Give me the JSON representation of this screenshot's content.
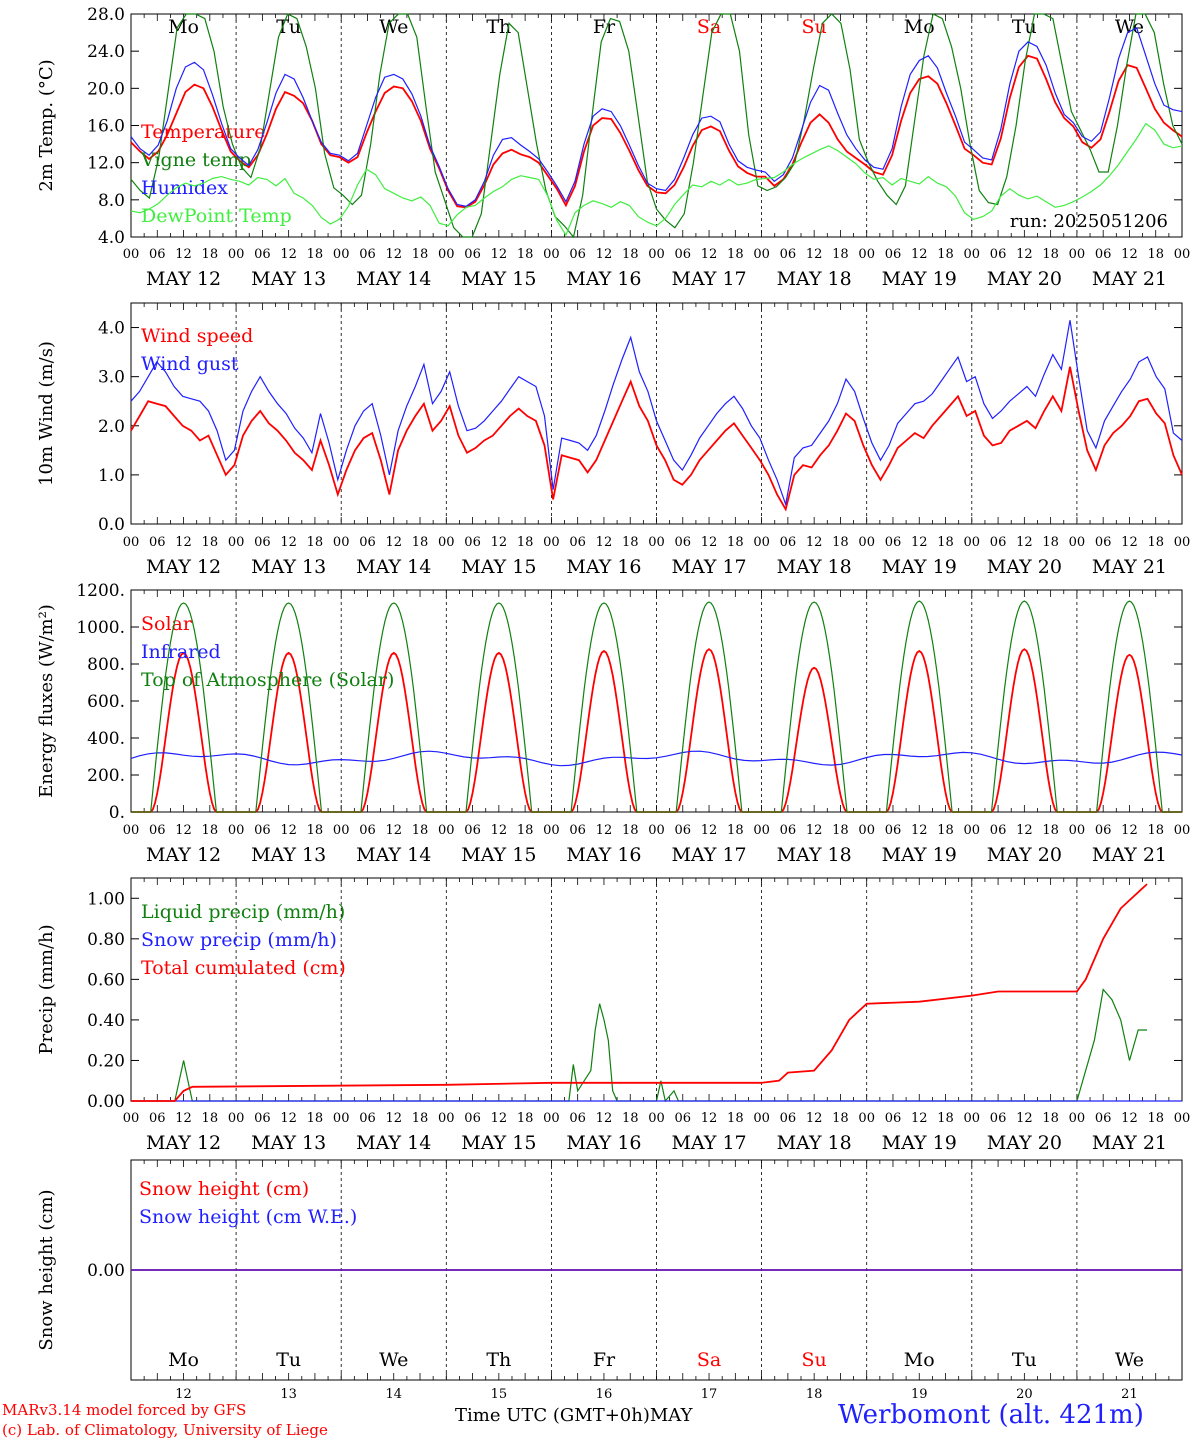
{
  "chart_data": [
    {
      "type": "line",
      "panel": "temperature",
      "ylabel": "2m Temp. (°C)",
      "ylim": [
        4,
        28
      ],
      "yticks": [
        "4.0",
        "8.0",
        "12.0",
        "16.0",
        "20.0",
        "24.0",
        "28.0"
      ],
      "annotation": "run: 2025051206",
      "series": [
        {
          "name": "Temperature",
          "color": "#ff0000",
          "values": [
            14.2,
            13.2,
            12.4,
            13.2,
            15,
            17.3,
            19.6,
            20.4,
            20,
            18,
            15.5,
            13.2,
            12.2,
            11.5,
            12.8,
            15.1,
            17.8,
            19.6,
            19.2,
            18.4,
            16.5,
            14,
            12.8,
            12.6,
            12,
            12.6,
            15.2,
            17.5,
            19.5,
            20.2,
            20,
            18.6,
            16.5,
            13.5,
            11.4,
            9,
            7.3,
            7.2,
            7.8,
            9.6,
            11.8,
            13,
            13.4,
            12.9,
            12.6,
            12,
            10.6,
            9.2,
            7.4,
            9.5,
            13.2,
            16,
            16.8,
            16.7,
            15.2,
            13.3,
            11.2,
            9.5,
            8.8,
            8.7,
            9.6,
            11.5,
            13.8,
            15.5,
            15.9,
            15.4,
            13.3,
            11.6,
            10.9,
            10.5,
            10.5,
            9.5,
            10.2,
            11.8,
            14.2,
            16.3,
            17.2,
            16.3,
            14.5,
            13.2,
            12.5,
            11.8,
            11,
            10.7,
            12.8,
            16.5,
            19.5,
            21,
            21.3,
            20.5,
            18.4,
            16,
            13.5,
            12.8,
            12,
            11.8,
            14.6,
            19,
            22.3,
            23.5,
            23.2,
            21,
            18.5,
            16.8,
            15.9,
            14.2,
            13.6,
            14.5,
            17.5,
            20.8,
            22.5,
            22.2,
            20,
            17.8,
            16.3,
            15.5,
            14.8
          ]
        },
        {
          "name": "Vigne temp",
          "color": "#108010",
          "values": [
            10.2,
            9,
            8.2,
            12.5,
            19.5,
            26.5,
            28,
            28,
            27.5,
            24,
            18,
            14,
            11.5,
            10.4,
            13.5,
            19.5,
            25.5,
            28,
            27.5,
            24.5,
            20,
            13,
            9.3,
            8.5,
            7.5,
            8.5,
            14,
            21.5,
            27,
            28,
            28,
            25.5,
            18,
            11,
            8,
            5,
            3.5,
            3,
            6.5,
            14,
            21.5,
            27,
            26,
            20,
            14,
            9,
            6.2,
            5.2,
            4,
            8.5,
            17,
            25,
            27.5,
            27.2,
            24,
            17,
            10,
            7,
            5.8,
            5,
            6.5,
            12,
            19,
            26,
            28,
            28,
            24,
            15,
            9.5,
            9,
            9.4,
            10.4,
            12,
            16.5,
            22,
            27,
            28,
            27,
            22,
            14.5,
            12,
            10,
            8.5,
            7.5,
            9.5,
            16.5,
            23.5,
            28,
            27.5,
            24.5,
            20,
            14,
            9,
            7.7,
            7.5,
            10.5,
            16,
            23,
            28,
            28,
            27.5,
            22.5,
            17.5,
            15.5,
            13.5,
            11,
            11,
            16,
            22.5,
            28,
            28,
            26,
            20.5,
            16,
            14
          ]
        },
        {
          "name": "Humidex",
          "color": "#2020ff",
          "values": [
            14.8,
            13.5,
            12.8,
            13.9,
            16.5,
            20,
            22.3,
            22.8,
            22,
            19.3,
            16.2,
            13.5,
            12.5,
            11.7,
            13.4,
            16.3,
            19.5,
            21.5,
            21,
            19,
            16.5,
            14.2,
            13,
            12.8,
            12.2,
            13,
            16,
            19,
            21.2,
            21.5,
            21,
            19.4,
            17,
            13.8,
            11.6,
            9.2,
            7.5,
            7.3,
            8,
            10,
            12.8,
            14.5,
            14.7,
            13.9,
            13.2,
            12.4,
            11,
            9.5,
            7.8,
            10,
            14,
            17,
            17.8,
            17.5,
            16,
            13.9,
            11.7,
            9.8,
            9.2,
            9,
            10.2,
            12.5,
            15,
            16.8,
            17,
            16.4,
            14,
            12.2,
            11.5,
            11.2,
            11,
            10,
            10.7,
            12.5,
            15.5,
            18.5,
            20.3,
            19.8,
            17.3,
            15,
            13.5,
            12.3,
            11.5,
            11.3,
            13.5,
            18,
            21.5,
            23,
            23.5,
            22.2,
            19.5,
            17,
            14.2,
            13.4,
            12.5,
            12.3,
            15.6,
            20.5,
            24,
            25,
            24.5,
            22.5,
            19.5,
            17.2,
            16.3,
            14.8,
            14.3,
            15.3,
            19,
            23.2,
            26,
            26.5,
            23.5,
            20.5,
            18.2,
            17.7,
            17.5
          ]
        },
        {
          "name": "DewPoint Temp",
          "color": "#40ee40",
          "values": [
            6.8,
            6.6,
            7,
            7.6,
            8.5,
            9.3,
            9.8,
            9.5,
            9.8,
            10.3,
            10.5,
            10.2,
            10,
            9.6,
            10.4,
            10.2,
            9.5,
            10.3,
            8.7,
            8.2,
            7.4,
            6.1,
            5.4,
            5.9,
            7.3,
            9.6,
            11.3,
            10.7,
            9.2,
            8.7,
            8.2,
            7.9,
            8.3,
            7.4,
            5.5,
            5.2,
            6.4,
            7.2,
            7.4,
            8.2,
            8.9,
            9.4,
            10.2,
            10.6,
            10.4,
            10.2,
            8.4,
            5.8,
            4.2,
            6.6,
            7.4,
            7.9,
            7.6,
            7.2,
            7.8,
            7.4,
            6.2,
            5.6,
            5.2,
            6,
            7.5,
            8.6,
            9.6,
            9.4,
            10,
            9.6,
            10.2,
            9.6,
            9.8,
            10.2,
            10.3,
            10.4,
            11,
            11.8,
            12.4,
            12.9,
            13.4,
            13.8,
            13.3,
            12.6,
            11.9,
            10.9,
            10.2,
            10.4,
            9.6,
            10.3,
            10,
            9.7,
            10.5,
            9.8,
            9.4,
            8.4,
            6.6,
            5.9,
            6.2,
            6.8,
            8.4,
            9.2,
            8.5,
            8.1,
            8.4,
            7.8,
            7.2,
            7.4,
            7.8,
            8.3,
            8.9,
            9.6,
            10.6,
            11.8,
            13.2,
            14.6,
            16.2,
            15.5,
            14,
            13.6,
            13.8
          ]
        }
      ]
    },
    {
      "type": "line",
      "panel": "wind",
      "ylabel": "10m Wind (m/s)",
      "ylim": [
        0,
        4.5
      ],
      "yticks": [
        "0.0",
        "1.0",
        "2.0",
        "3.0",
        "4.0"
      ],
      "series": [
        {
          "name": "Wind speed",
          "color": "#ff0000",
          "values": [
            1.9,
            2.2,
            2.5,
            2.45,
            2.4,
            2.2,
            2,
            1.9,
            1.7,
            1.8,
            1.4,
            1,
            1.2,
            1.8,
            2.1,
            2.3,
            2.05,
            1.9,
            1.7,
            1.45,
            1.3,
            1.1,
            1.7,
            1.2,
            0.6,
            1.1,
            1.5,
            1.75,
            1.85,
            1.3,
            0.6,
            1.5,
            1.9,
            2.2,
            2.45,
            1.9,
            2.1,
            2.4,
            1.8,
            1.45,
            1.55,
            1.7,
            1.8,
            2,
            2.2,
            2.35,
            2.2,
            2.1,
            1.6,
            0.5,
            1.4,
            1.35,
            1.3,
            1.05,
            1.3,
            1.7,
            2.1,
            2.5,
            2.9,
            2.4,
            2.1,
            1.6,
            1.3,
            0.9,
            0.8,
            1,
            1.3,
            1.5,
            1.7,
            1.9,
            2.05,
            1.8,
            1.55,
            1.3,
            1,
            0.6,
            0.3,
            1,
            1.2,
            1.15,
            1.4,
            1.6,
            1.9,
            2.25,
            2.1,
            1.6,
            1.2,
            0.9,
            1.2,
            1.55,
            1.7,
            1.85,
            1.75,
            2,
            2.2,
            2.4,
            2.6,
            2.2,
            2.3,
            1.8,
            1.6,
            1.65,
            1.9,
            2,
            2.1,
            1.95,
            2.3,
            2.6,
            2.3,
            3.2,
            2.3,
            1.5,
            1.1,
            1.6,
            1.85,
            2,
            2.2,
            2.5,
            2.55,
            2.25,
            2.05,
            1.4,
            1
          ]
        },
        {
          "name": "Wind gust",
          "color": "#2020ff",
          "values": [
            2.5,
            2.7,
            3,
            3.3,
            3.1,
            2.8,
            2.6,
            2.55,
            2.5,
            2.3,
            1.9,
            1.3,
            1.5,
            2.3,
            2.7,
            3,
            2.7,
            2.45,
            2.25,
            1.95,
            1.75,
            1.45,
            2.25,
            1.65,
            0.9,
            1.5,
            2,
            2.3,
            2.45,
            1.8,
            1,
            1.9,
            2.4,
            2.8,
            3.25,
            2.45,
            2.7,
            3.1,
            2.4,
            1.9,
            1.95,
            2.1,
            2.3,
            2.5,
            2.75,
            3,
            2.9,
            2.8,
            2.2,
            0.7,
            1.75,
            1.7,
            1.65,
            1.5,
            1.8,
            2.3,
            2.85,
            3.35,
            3.8,
            3.1,
            2.7,
            2.1,
            1.7,
            1.3,
            1.1,
            1.4,
            1.75,
            2,
            2.25,
            2.45,
            2.6,
            2.35,
            2,
            1.75,
            1.3,
            0.9,
            0.4,
            1.35,
            1.55,
            1.6,
            1.85,
            2.1,
            2.45,
            2.95,
            2.7,
            2.15,
            1.65,
            1.3,
            1.6,
            2.05,
            2.25,
            2.45,
            2.5,
            2.65,
            2.9,
            3.15,
            3.4,
            2.9,
            3,
            2.45,
            2.15,
            2.3,
            2.5,
            2.65,
            2.8,
            2.6,
            3.05,
            3.45,
            3.15,
            4.15,
            3,
            1.9,
            1.55,
            2.1,
            2.4,
            2.7,
            2.95,
            3.3,
            3.4,
            3,
            2.75,
            1.85,
            1.7
          ]
        }
      ]
    },
    {
      "type": "line",
      "panel": "energy",
      "ylabel": "Energy fluxes (W/m²)",
      "ylim": [
        0,
        1200
      ],
      "yticks": [
        "0.",
        "200.",
        "400.",
        "600.",
        "800.",
        "1000.",
        "1200."
      ],
      "series": [
        {
          "name": "Solar",
          "color": "#ff0000",
          "daily_peaks": [
            860,
            860,
            860,
            860,
            870,
            880,
            780,
            870,
            880,
            850
          ]
        },
        {
          "name": "Infrared",
          "color": "#2020ff",
          "approx_level": 290
        },
        {
          "name": "Top of Atmosphere (Solar)",
          "color": "#108010",
          "daily_peaks": [
            1130,
            1130,
            1130,
            1130,
            1130,
            1135,
            1135,
            1140,
            1140,
            1140
          ]
        }
      ]
    },
    {
      "type": "line",
      "panel": "precip",
      "ylabel": "Precip (mm/h)",
      "ylim": [
        0,
        1.1
      ],
      "yticks": [
        "0.00",
        "0.20",
        "0.40",
        "0.60",
        "0.80",
        "1.00"
      ],
      "series": [
        {
          "name": "Liquid precip (mm/h)",
          "color": "#108010",
          "points": [
            [
              0,
              0
            ],
            [
              10,
              0
            ],
            [
              11,
              0.1
            ],
            [
              12,
              0.2
            ],
            [
              13,
              0.1
            ],
            [
              14,
              0
            ],
            [
              100,
              0
            ],
            [
              101,
              0.18
            ],
            [
              102,
              0.05
            ],
            [
              105,
              0.15
            ],
            [
              106,
              0.35
            ],
            [
              107,
              0.48
            ],
            [
              108,
              0.4
            ],
            [
              109,
              0.3
            ],
            [
              110,
              0.05
            ],
            [
              111,
              0
            ],
            [
              120,
              0
            ],
            [
              121,
              0.1
            ],
            [
              122,
              0
            ],
            [
              124,
              0.05
            ],
            [
              125,
              0
            ],
            [
              216,
              0
            ],
            [
              220,
              0.3
            ],
            [
              222,
              0.55
            ],
            [
              224,
              0.5
            ],
            [
              226,
              0.4
            ],
            [
              228,
              0.2
            ],
            [
              230,
              0.35
            ],
            [
              232,
              0.35
            ]
          ]
        },
        {
          "name": "Snow precip (mm/h)",
          "color": "#2020ff",
          "constant": 0
        },
        {
          "name": "Total cumulated (cm)",
          "color": "#ff0000",
          "points": [
            [
              0,
              0
            ],
            [
              10,
              0
            ],
            [
              12,
              0.05
            ],
            [
              14,
              0.07
            ],
            [
              72,
              0.08
            ],
            [
              96,
              0.09
            ],
            [
              144,
              0.09
            ],
            [
              148,
              0.1
            ],
            [
              150,
              0.14
            ],
            [
              156,
              0.15
            ],
            [
              160,
              0.25
            ],
            [
              164,
              0.4
            ],
            [
              168,
              0.48
            ],
            [
              180,
              0.49
            ],
            [
              192,
              0.52
            ],
            [
              198,
              0.54
            ],
            [
              216,
              0.54
            ],
            [
              218,
              0.6
            ],
            [
              222,
              0.8
            ],
            [
              226,
              0.95
            ],
            [
              232,
              1.07
            ]
          ]
        }
      ]
    },
    {
      "type": "line",
      "panel": "snow",
      "ylabel": "Snow height (cm)",
      "yticks": [
        "0.00"
      ],
      "series": [
        {
          "name": "Snow height (cm)",
          "color": "#ff0000",
          "constant": 0
        },
        {
          "name": "Snow height (cm W.E.)",
          "color": "#2020ff",
          "constant": 0
        }
      ]
    }
  ],
  "x_axis": {
    "hour_ticks": [
      "00",
      "06",
      "12",
      "18"
    ],
    "end_tick": "00",
    "dates": [
      "MAY 12",
      "MAY 13",
      "MAY 14",
      "MAY 15",
      "MAY 16",
      "MAY 17",
      "MAY 18",
      "MAY 19",
      "MAY 20",
      "MAY 21"
    ],
    "weekdays": [
      "Mo",
      "Tu",
      "We",
      "Th",
      "Fr",
      "Sa",
      "Su",
      "Mo",
      "Tu",
      "We"
    ],
    "weekend_indices": [
      5,
      6
    ],
    "day_numbers": [
      "12",
      "13",
      "14",
      "15",
      "16",
      "17",
      "18",
      "19",
      "20",
      "21"
    ],
    "title": "Time UTC (GMT+0h)",
    "month": "MAY"
  },
  "colors": {
    "weekend": "#ff0000",
    "weekday": "#000000"
  },
  "footer": {
    "model_line": "MARv3.14 model forced by GFS",
    "credit_line": "(c) Lab. of Climatology, University of Liege",
    "station": "Werbomont (alt. 421m)"
  }
}
